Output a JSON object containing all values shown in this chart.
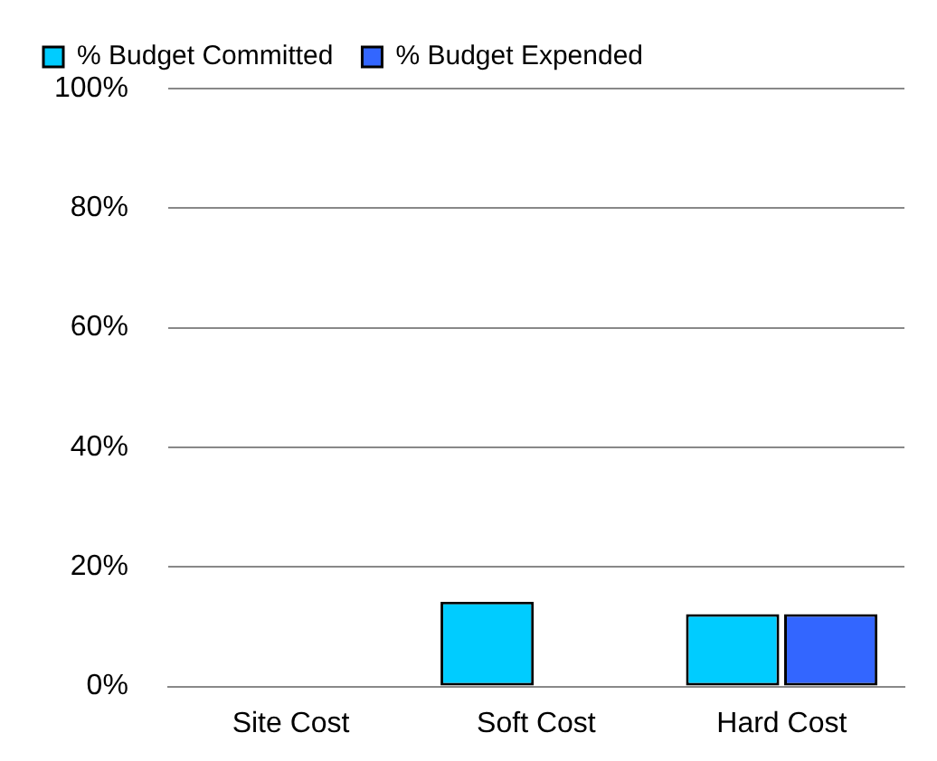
{
  "chart_data": {
    "type": "bar",
    "categories": [
      "Site Cost",
      "Soft Cost",
      "Hard Cost"
    ],
    "series": [
      {
        "name": "% Budget Committed",
        "color": "#00ccff",
        "values": [
          0,
          14.2,
          12.1
        ]
      },
      {
        "name": "% Budget Expended",
        "color": "#3366ff",
        "values": [
          0,
          null,
          12.1
        ]
      }
    ],
    "ylim": [
      0,
      100
    ],
    "yticks": [
      {
        "value": 0,
        "label": "0%"
      },
      {
        "value": 20,
        "label": "20%"
      },
      {
        "value": 40,
        "label": "40%"
      },
      {
        "value": 60,
        "label": "60%"
      },
      {
        "value": 80,
        "label": "80%"
      },
      {
        "value": 100,
        "label": "100%"
      }
    ],
    "grid": "y",
    "legend": "top left"
  }
}
